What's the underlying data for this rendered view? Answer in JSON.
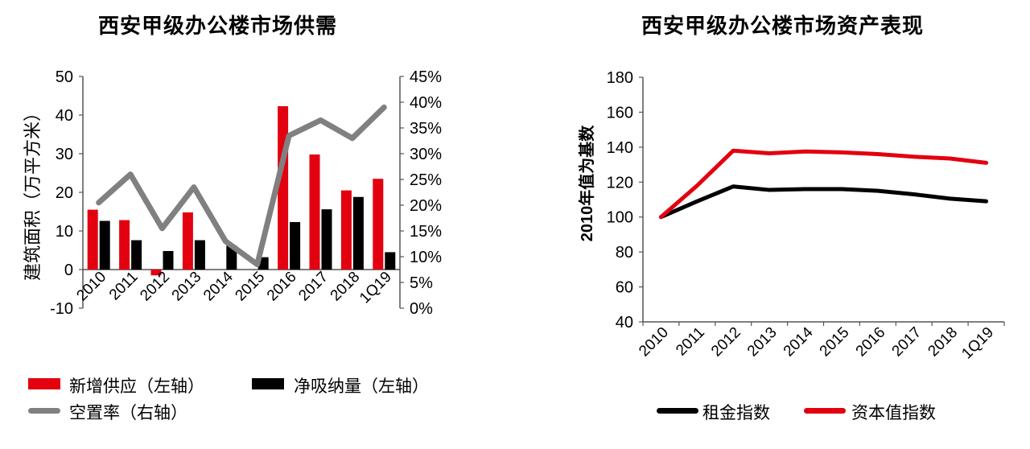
{
  "chart_data": [
    {
      "type": "bar",
      "title": "西安甲级办公楼市场供需",
      "ylabel": "建筑面积（万平方米）",
      "categories": [
        "2010",
        "2011",
        "2012",
        "2013",
        "2014",
        "2015",
        "2016",
        "2017",
        "2018",
        "1Q19"
      ],
      "ylim": [
        -10,
        50
      ],
      "yticks": [
        "-10",
        "0",
        "10",
        "20",
        "30",
        "40",
        "50"
      ],
      "y2lim": [
        0,
        45
      ],
      "y2ticks": [
        "0%",
        "5%",
        "10%",
        "15%",
        "20%",
        "25%",
        "30%",
        "35%",
        "40%",
        "45%"
      ],
      "series": [
        {
          "name": "新增供应（左轴）",
          "kind": "bar",
          "axis": "left",
          "color": "#e3000f",
          "values": [
            15.5,
            12.8,
            -1.5,
            14.8,
            0,
            0,
            42.3,
            29.8,
            20.5,
            23.5
          ]
        },
        {
          "name": "净吸纳量（左轴）",
          "kind": "bar",
          "axis": "left",
          "color": "#000000",
          "values": [
            12.6,
            7.6,
            4.8,
            7.6,
            6.2,
            3.2,
            12.3,
            15.6,
            18.8,
            4.5
          ]
        },
        {
          "name": "空置率（右轴）",
          "kind": "line",
          "axis": "right",
          "color": "#808080",
          "values": [
            20.5,
            26.0,
            15.5,
            23.5,
            13.0,
            8.5,
            33.5,
            36.5,
            33.0,
            39.0
          ]
        }
      ],
      "grid": false,
      "legend_position": "bottom"
    },
    {
      "type": "line",
      "title": "西安甲级办公楼市场资产表现",
      "ylabel": "2010年值为基数",
      "categories": [
        "2010",
        "2011",
        "2012",
        "2013",
        "2014",
        "2015",
        "2016",
        "2017",
        "2018",
        "1Q19"
      ],
      "ylim": [
        40,
        180
      ],
      "yticks": [
        "40",
        "60",
        "80",
        "100",
        "120",
        "140",
        "160",
        "180"
      ],
      "series": [
        {
          "name": "租金指数",
          "color": "#000000",
          "values": [
            100,
            109,
            117.5,
            115.5,
            116,
            116,
            115,
            113,
            110.5,
            109
          ]
        },
        {
          "name": "资本值指数",
          "color": "#e3000f",
          "values": [
            100,
            118,
            138,
            136.5,
            137.5,
            137,
            136,
            134.5,
            133.5,
            131
          ]
        }
      ],
      "grid": false,
      "legend_position": "bottom"
    }
  ]
}
